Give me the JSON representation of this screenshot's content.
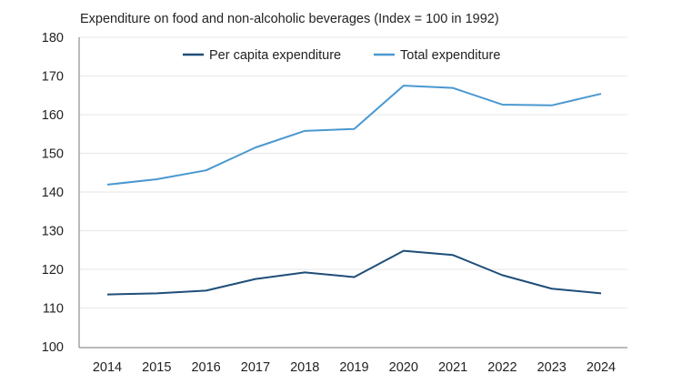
{
  "chart_data": {
    "type": "line",
    "title": "Expenditure on food and non-alcoholic beverages (Index = 100 in 1992)",
    "xlabel": "",
    "ylabel": "",
    "categories": [
      "2014",
      "2015",
      "2016",
      "2017",
      "2018",
      "2019",
      "2020",
      "2021",
      "2022",
      "2023",
      "2024"
    ],
    "ylim": [
      100,
      180
    ],
    "yticks": [
      100,
      110,
      120,
      130,
      140,
      150,
      160,
      170,
      180
    ],
    "grid": true,
    "legend_position": "top-center",
    "series": [
      {
        "name": "Per capita expenditure",
        "color": "#1f4e79",
        "values": [
          113.5,
          113.8,
          114.5,
          117.5,
          119.2,
          118.0,
          124.8,
          123.7,
          118.5,
          115.0,
          113.8
        ]
      },
      {
        "name": "Total expenditure",
        "color": "#4a98d0",
        "values": [
          141.9,
          143.3,
          145.6,
          151.5,
          155.8,
          156.3,
          167.5,
          166.9,
          162.6,
          162.4,
          165.4
        ]
      }
    ]
  }
}
